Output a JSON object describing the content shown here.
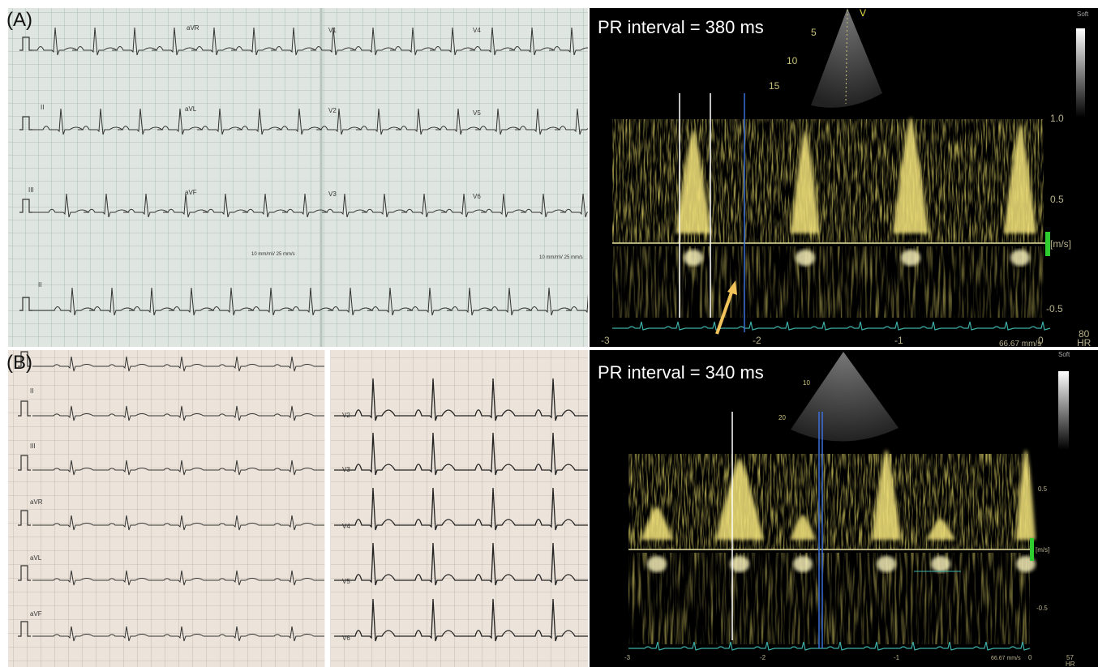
{
  "panel_a": {
    "label": "(A)",
    "ecg": {
      "leads": [
        "aVR",
        "V1",
        "V4",
        "II",
        "aVL",
        "V2",
        "V5",
        "III",
        "aVF",
        "V3",
        "V6",
        "II"
      ],
      "calibration": [
        "10 mm/mV  25 mm/s",
        "10 mm/mV  25 mm/s"
      ]
    },
    "doppler": {
      "title": "PR interval = 380 ms",
      "filter": "Soft",
      "depth_marks": [
        "5",
        "10",
        "15"
      ],
      "probe_marker": "V",
      "velocity_ticks": [
        "1.0",
        "0.5",
        "-0.5"
      ],
      "unit": "[m/s]",
      "time_ticks": [
        "-3",
        "-2",
        "-1",
        "0"
      ],
      "heart_rate": "80",
      "heart_rate_label": "HR",
      "sweep_speed": "66.67 mm/s"
    }
  },
  "panel_b": {
    "label": "(B)",
    "ecg": {
      "leads": [
        "II",
        "V2",
        "III",
        "V3",
        "aVR",
        "V4",
        "aVL",
        "V5",
        "aVF",
        "V6"
      ]
    },
    "doppler": {
      "title": "PR interval = 340 ms",
      "filter": "Soft",
      "depth_marks": [
        "10",
        "20"
      ],
      "velocity_ticks": [
        "0.5",
        "-0.5"
      ],
      "unit": "[m/s]",
      "time_ticks": [
        "-3",
        "-2",
        "-1",
        "0"
      ],
      "heart_rate": "57",
      "heart_rate_label": "HR",
      "sweep_speed": "66.67 mm/s"
    }
  }
}
